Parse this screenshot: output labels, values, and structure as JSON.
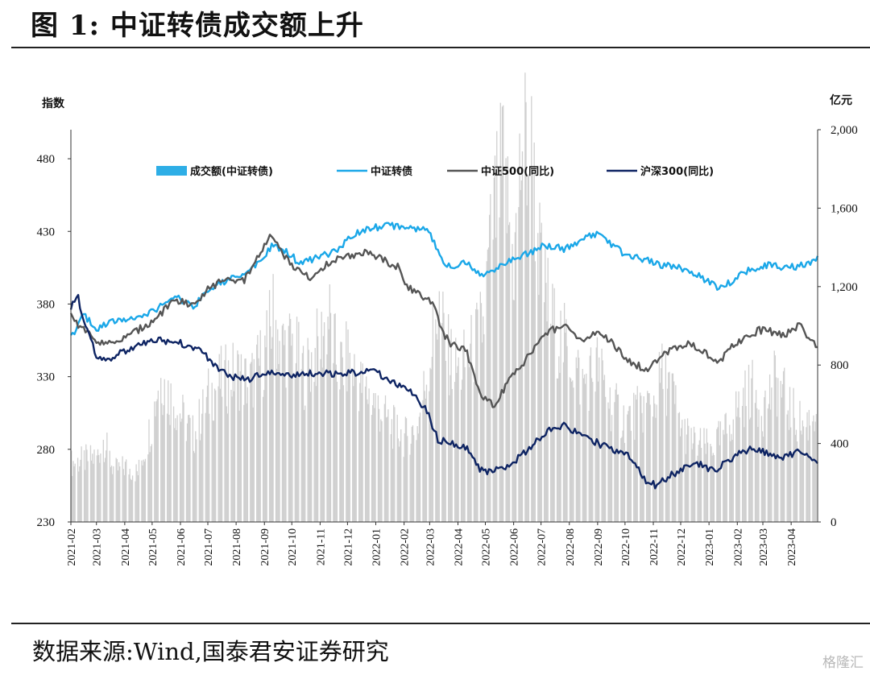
{
  "title": "图 1:  中证转债成交额上升",
  "source": "数据来源:Wind,国泰君安证券研究",
  "watermark": "格隆汇",
  "chart_data": {
    "type": "line",
    "left_axis": {
      "unit": "指数",
      "min": 230,
      "max": 500,
      "ticks": [
        230,
        280,
        330,
        380,
        430,
        480
      ]
    },
    "right_axis": {
      "unit": "亿元",
      "min": 0,
      "max": 2000,
      "ticks": [
        "0",
        "400",
        "800",
        "1,200",
        "1,600",
        "2,000"
      ],
      "tick_values": [
        0,
        400,
        800,
        1200,
        1600,
        2000
      ]
    },
    "x_start": "2021-02-01",
    "x_end": "2023-04-30",
    "x_ticks": [
      "2021-02",
      "2021-03",
      "2021-04",
      "2021-05",
      "2021-06",
      "2021-07",
      "2021-08",
      "2021-09",
      "2021-10",
      "2021-11",
      "2021-12",
      "2022-01",
      "2022-02",
      "2022-03",
      "2022-04",
      "2022-05",
      "2022-06",
      "2022-07",
      "2022-08",
      "2022-09",
      "2022-10",
      "2022-11",
      "2022-12",
      "2023-01",
      "2023-02",
      "2023-03",
      "2023-04"
    ],
    "legend": {
      "placement": "top-left"
    },
    "colors": {
      "volume": "#d0d0d0",
      "volume_legend": "#2eaee6",
      "csi_cb": "#1aa7e8",
      "csi500": "#555555",
      "hs300": "#0e2463"
    },
    "series": [
      {
        "name": "成交额(中证转债)",
        "type": "bar",
        "axis": "right",
        "x": [
          "2021-02-01",
          "2021-03-01",
          "2021-03-08",
          "2021-03-20",
          "2021-04-01",
          "2021-04-15",
          "2021-05-01",
          "2021-05-08",
          "2021-05-20",
          "2021-06-01",
          "2021-06-15",
          "2021-07-01",
          "2021-07-15",
          "2021-08-01",
          "2021-08-15",
          "2021-09-01",
          "2021-09-10",
          "2021-09-20",
          "2021-10-01",
          "2021-10-15",
          "2021-11-01",
          "2021-11-10",
          "2021-11-20",
          "2021-12-01",
          "2021-12-15",
          "2022-01-01",
          "2022-01-15",
          "2022-02-01",
          "2022-02-15",
          "2022-03-01",
          "2022-03-10",
          "2022-03-20",
          "2022-04-01",
          "2022-04-15",
          "2022-04-28",
          "2022-05-08",
          "2022-05-20",
          "2022-06-01",
          "2022-06-10",
          "2022-06-20",
          "2022-07-01",
          "2022-07-15",
          "2022-08-01",
          "2022-08-15",
          "2022-09-01",
          "2022-09-15",
          "2022-10-01",
          "2022-10-15",
          "2022-11-01",
          "2022-11-10",
          "2022-11-20",
          "2022-12-01",
          "2022-12-15",
          "2023-01-01",
          "2023-01-15",
          "2023-02-01",
          "2023-02-15",
          "2023-03-01",
          "2023-03-15",
          "2023-04-01",
          "2023-04-15",
          "2023-04-30"
        ],
        "values": [
          300,
          330,
          420,
          260,
          280,
          250,
          520,
          750,
          640,
          550,
          440,
          640,
          720,
          760,
          700,
          860,
          1050,
          900,
          900,
          750,
          920,
          1050,
          780,
          830,
          700,
          600,
          500,
          430,
          480,
          850,
          1100,
          860,
          760,
          860,
          1000,
          1500,
          1800,
          1300,
          1950,
          1850,
          1250,
          980,
          860,
          700,
          800,
          600,
          520,
          560,
          620,
          750,
          680,
          480,
          400,
          380,
          430,
          580,
          680,
          580,
          720,
          560,
          480,
          600
        ]
      },
      {
        "name": "中证转债",
        "type": "line",
        "axis": "left",
        "x": [
          "2021-02-01",
          "2021-02-15",
          "2021-03-01",
          "2021-03-20",
          "2021-04-10",
          "2021-05-01",
          "2021-05-25",
          "2021-06-15",
          "2021-07-01",
          "2021-07-20",
          "2021-08-10",
          "2021-08-25",
          "2021-09-10",
          "2021-09-25",
          "2021-10-10",
          "2021-11-01",
          "2021-11-20",
          "2021-12-10",
          "2022-01-01",
          "2022-01-20",
          "2022-02-05",
          "2022-02-20",
          "2022-03-05",
          "2022-03-15",
          "2022-03-25",
          "2022-04-10",
          "2022-04-26",
          "2022-05-10",
          "2022-05-30",
          "2022-06-20",
          "2022-07-05",
          "2022-07-25",
          "2022-08-15",
          "2022-08-30",
          "2022-09-15",
          "2022-10-05",
          "2022-10-25",
          "2022-11-10",
          "2022-11-25",
          "2022-12-10",
          "2022-12-25",
          "2023-01-10",
          "2023-01-25",
          "2023-02-10",
          "2023-02-25",
          "2023-03-10",
          "2023-03-25",
          "2023-04-10",
          "2023-04-20",
          "2023-04-30"
        ],
        "values": [
          357,
          372,
          363,
          368,
          370,
          375,
          385,
          378,
          390,
          396,
          400,
          408,
          420,
          416,
          408,
          412,
          418,
          428,
          433,
          434,
          431,
          433,
          425,
          410,
          405,
          410,
          398,
          404,
          410,
          416,
          420,
          418,
          424,
          428,
          421,
          413,
          410,
          407,
          405,
          403,
          398,
          392,
          395,
          402,
          406,
          407,
          405,
          406,
          408,
          412
        ]
      },
      {
        "name": "中证500(同比)",
        "type": "line",
        "axis": "left",
        "x": [
          "2021-02-01",
          "2021-02-10",
          "2021-03-01",
          "2021-03-20",
          "2021-04-10",
          "2021-05-01",
          "2021-05-25",
          "2021-06-15",
          "2021-07-01",
          "2021-07-20",
          "2021-08-10",
          "2021-08-25",
          "2021-09-08",
          "2021-09-20",
          "2021-10-05",
          "2021-10-20",
          "2021-11-10",
          "2021-12-01",
          "2021-12-20",
          "2022-01-10",
          "2022-01-25",
          "2022-02-05",
          "2022-02-20",
          "2022-03-05",
          "2022-03-15",
          "2022-03-25",
          "2022-04-10",
          "2022-04-26",
          "2022-05-10",
          "2022-05-30",
          "2022-06-20",
          "2022-07-05",
          "2022-07-25",
          "2022-08-15",
          "2022-08-30",
          "2022-09-15",
          "2022-10-05",
          "2022-10-25",
          "2022-11-10",
          "2022-11-25",
          "2022-12-10",
          "2022-12-25",
          "2023-01-10",
          "2023-01-25",
          "2023-02-10",
          "2023-02-25",
          "2023-03-10",
          "2023-03-25",
          "2023-04-10",
          "2023-04-20",
          "2023-04-30"
        ],
        "values": [
          373,
          365,
          355,
          352,
          360,
          368,
          382,
          380,
          390,
          398,
          396,
          412,
          428,
          415,
          405,
          398,
          408,
          413,
          416,
          410,
          406,
          392,
          385,
          382,
          360,
          352,
          348,
          318,
          310,
          330,
          346,
          360,
          365,
          355,
          360,
          355,
          340,
          335,
          345,
          350,
          353,
          348,
          338,
          350,
          357,
          362,
          361,
          358,
          366,
          355,
          351
        ]
      },
      {
        "name": "沪深300(同比)",
        "type": "line",
        "axis": "left",
        "x": [
          "2021-02-01",
          "2021-02-08",
          "2021-02-18",
          "2021-03-01",
          "2021-03-15",
          "2021-04-01",
          "2021-04-20",
          "2021-05-10",
          "2021-06-01",
          "2021-06-20",
          "2021-07-10",
          "2021-07-28",
          "2021-08-15",
          "2021-09-01",
          "2021-09-20",
          "2021-10-10",
          "2021-11-01",
          "2021-11-20",
          "2021-12-10",
          "2021-12-25",
          "2022-01-10",
          "2022-01-25",
          "2022-02-10",
          "2022-02-25",
          "2022-03-10",
          "2022-03-25",
          "2022-04-10",
          "2022-04-26",
          "2022-05-10",
          "2022-05-30",
          "2022-06-20",
          "2022-07-05",
          "2022-07-25",
          "2022-08-15",
          "2022-08-30",
          "2022-09-15",
          "2022-10-05",
          "2022-10-25",
          "2022-11-05",
          "2022-11-20",
          "2022-12-05",
          "2022-12-20",
          "2023-01-05",
          "2023-01-20",
          "2023-02-05",
          "2023-02-20",
          "2023-03-10",
          "2023-03-25",
          "2023-04-10",
          "2023-04-20",
          "2023-04-30"
        ],
        "values": [
          378,
          386,
          364,
          344,
          343,
          347,
          352,
          355,
          353,
          350,
          337,
          330,
          328,
          333,
          330,
          332,
          333,
          331,
          333,
          336,
          330,
          325,
          318,
          308,
          287,
          284,
          282,
          265,
          265,
          270,
          282,
          292,
          297,
          290,
          285,
          280,
          275,
          258,
          255,
          262,
          267,
          270,
          265,
          271,
          279,
          280,
          276,
          275,
          279,
          276,
          272
        ]
      }
    ]
  }
}
